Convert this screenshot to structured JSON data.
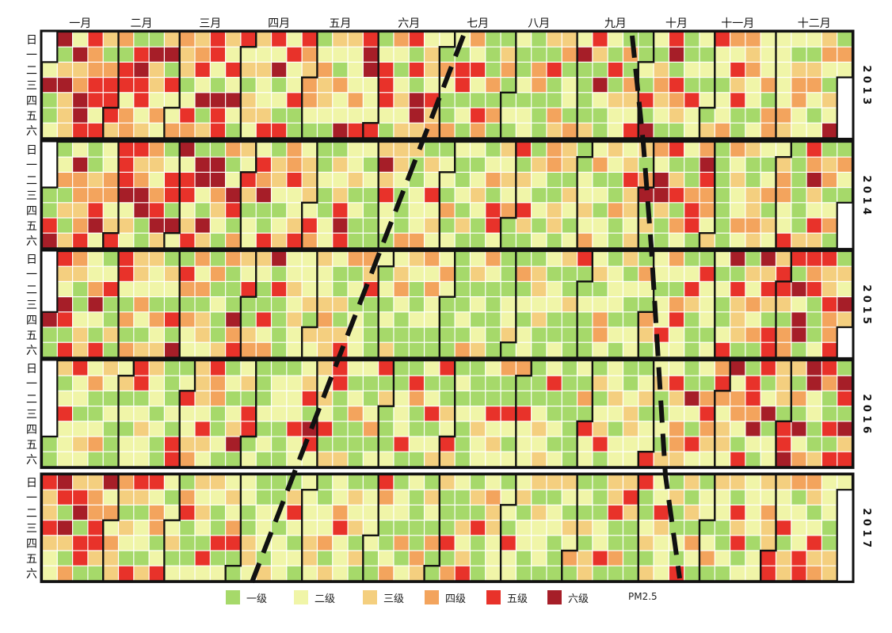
{
  "chart_data": {
    "type": "heatmap",
    "title": "",
    "measure": "PM2.5",
    "years": [
      "2013",
      "2014",
      "2015",
      "2016",
      "2017"
    ],
    "months": [
      "一月",
      "二月",
      "三月",
      "四月",
      "五月",
      "六月",
      "七月",
      "八月",
      "九月",
      "十月",
      "十一月",
      "十二月"
    ],
    "weekdays": [
      "日",
      "一",
      "二",
      "三",
      "四",
      "五",
      "六"
    ],
    "levels": [
      {
        "name": "一级",
        "color": "#a6d96a"
      },
      {
        "name": "二级",
        "color": "#f0f5a8"
      },
      {
        "name": "三级",
        "color": "#f4cf7f"
      },
      {
        "name": "四级",
        "color": "#f3a45d"
      },
      {
        "name": "五级",
        "color": "#e8322a"
      },
      {
        "name": "六级",
        "color": "#a61e28"
      }
    ],
    "level_share_by_year_month": {
      "2013": [
        [
          0.12,
          0.1,
          0.16,
          0.16,
          0.24,
          0.22
        ],
        [
          0.14,
          0.16,
          0.2,
          0.14,
          0.22,
          0.14
        ],
        [
          0.16,
          0.18,
          0.2,
          0.14,
          0.2,
          0.12
        ],
        [
          0.3,
          0.26,
          0.16,
          0.12,
          0.12,
          0.04
        ],
        [
          0.26,
          0.3,
          0.16,
          0.12,
          0.12,
          0.04
        ],
        [
          0.2,
          0.24,
          0.22,
          0.14,
          0.14,
          0.06
        ],
        [
          0.4,
          0.32,
          0.14,
          0.08,
          0.06,
          0
        ],
        [
          0.44,
          0.3,
          0.14,
          0.08,
          0.04,
          0
        ],
        [
          0.36,
          0.32,
          0.16,
          0.08,
          0.06,
          0.02
        ],
        [
          0.3,
          0.3,
          0.16,
          0.12,
          0.08,
          0.04
        ],
        [
          0.3,
          0.28,
          0.16,
          0.12,
          0.1,
          0.04
        ],
        [
          0.24,
          0.28,
          0.18,
          0.12,
          0.12,
          0.06
        ]
      ],
      "2014": [
        [
          0.24,
          0.22,
          0.18,
          0.14,
          0.14,
          0.08
        ],
        [
          0.18,
          0.18,
          0.16,
          0.14,
          0.16,
          0.18
        ],
        [
          0.2,
          0.22,
          0.18,
          0.14,
          0.16,
          0.1
        ],
        [
          0.26,
          0.26,
          0.18,
          0.12,
          0.14,
          0.04
        ],
        [
          0.34,
          0.3,
          0.18,
          0.1,
          0.06,
          0.02
        ],
        [
          0.34,
          0.3,
          0.18,
          0.1,
          0.06,
          0.02
        ],
        [
          0.36,
          0.3,
          0.16,
          0.1,
          0.08,
          0
        ],
        [
          0.42,
          0.3,
          0.14,
          0.08,
          0.06,
          0
        ],
        [
          0.4,
          0.3,
          0.16,
          0.08,
          0.06,
          0
        ],
        [
          0.3,
          0.24,
          0.16,
          0.12,
          0.1,
          0.08
        ],
        [
          0.3,
          0.24,
          0.16,
          0.12,
          0.12,
          0.06
        ],
        [
          0.3,
          0.24,
          0.16,
          0.12,
          0.12,
          0.06
        ]
      ],
      "2015": [
        [
          0.22,
          0.22,
          0.18,
          0.14,
          0.16,
          0.08
        ],
        [
          0.24,
          0.24,
          0.18,
          0.14,
          0.14,
          0.06
        ],
        [
          0.28,
          0.26,
          0.18,
          0.12,
          0.12,
          0.04
        ],
        [
          0.36,
          0.3,
          0.16,
          0.1,
          0.06,
          0.02
        ],
        [
          0.42,
          0.3,
          0.14,
          0.08,
          0.06,
          0
        ],
        [
          0.44,
          0.3,
          0.14,
          0.08,
          0.04,
          0
        ],
        [
          0.46,
          0.3,
          0.14,
          0.06,
          0.04,
          0
        ],
        [
          0.5,
          0.28,
          0.12,
          0.06,
          0.04,
          0
        ],
        [
          0.46,
          0.3,
          0.14,
          0.06,
          0.04,
          0
        ],
        [
          0.36,
          0.26,
          0.14,
          0.1,
          0.1,
          0.04
        ],
        [
          0.24,
          0.22,
          0.16,
          0.14,
          0.16,
          0.08
        ],
        [
          0.12,
          0.12,
          0.14,
          0.14,
          0.28,
          0.2
        ]
      ],
      "2016": [
        [
          0.34,
          0.28,
          0.16,
          0.1,
          0.1,
          0.02
        ],
        [
          0.3,
          0.28,
          0.16,
          0.12,
          0.12,
          0.02
        ],
        [
          0.26,
          0.24,
          0.18,
          0.12,
          0.12,
          0.08
        ],
        [
          0.34,
          0.3,
          0.16,
          0.1,
          0.08,
          0.02
        ],
        [
          0.36,
          0.3,
          0.16,
          0.1,
          0.08,
          0
        ],
        [
          0.4,
          0.3,
          0.16,
          0.08,
          0.06,
          0
        ],
        [
          0.42,
          0.3,
          0.14,
          0.08,
          0.06,
          0
        ],
        [
          0.46,
          0.3,
          0.14,
          0.06,
          0.04,
          0
        ],
        [
          0.42,
          0.3,
          0.14,
          0.08,
          0.06,
          0
        ],
        [
          0.3,
          0.28,
          0.16,
          0.12,
          0.1,
          0.04
        ],
        [
          0.24,
          0.22,
          0.16,
          0.14,
          0.16,
          0.08
        ],
        [
          0.16,
          0.16,
          0.14,
          0.14,
          0.2,
          0.2
        ]
      ],
      "2017": [
        [
          0.18,
          0.16,
          0.16,
          0.14,
          0.18,
          0.18
        ],
        [
          0.3,
          0.28,
          0.16,
          0.12,
          0.12,
          0.02
        ],
        [
          0.3,
          0.28,
          0.18,
          0.12,
          0.12,
          0
        ],
        [
          0.36,
          0.3,
          0.16,
          0.1,
          0.08,
          0
        ],
        [
          0.44,
          0.3,
          0.14,
          0.08,
          0.04,
          0
        ],
        [
          0.44,
          0.3,
          0.14,
          0.08,
          0.04,
          0
        ],
        [
          0.46,
          0.3,
          0.14,
          0.06,
          0.04,
          0
        ],
        [
          0.46,
          0.28,
          0.14,
          0.08,
          0.04,
          0
        ],
        [
          0.4,
          0.3,
          0.16,
          0.08,
          0.06,
          0
        ],
        [
          0.4,
          0.3,
          0.14,
          0.08,
          0.08,
          0
        ],
        [
          0.38,
          0.28,
          0.16,
          0.1,
          0.08,
          0
        ],
        [
          0.34,
          0.28,
          0.16,
          0.1,
          0.1,
          0.02
        ]
      ]
    },
    "annotations": [
      "dashed trend lines marking season transitions across years"
    ]
  }
}
